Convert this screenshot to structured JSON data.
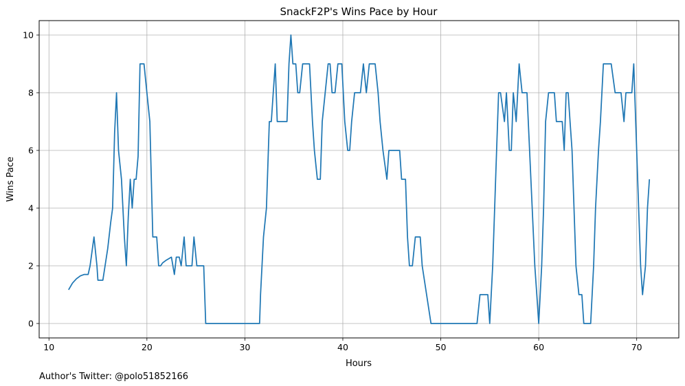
{
  "footnote": "Author's Twitter: @polo51852166",
  "chart_data": {
    "type": "line",
    "title": "SnackF2P's Wins Pace by Hour",
    "xlabel": "Hours",
    "ylabel": "Wins Pace",
    "xlim": [
      9,
      74.3
    ],
    "ylim": [
      -0.5,
      10.5
    ],
    "xticks": [
      10,
      20,
      30,
      40,
      50,
      60,
      70
    ],
    "yticks": [
      0,
      2,
      4,
      6,
      8,
      10
    ],
    "grid": true,
    "series": [
      {
        "color": "#1f77b4",
        "x": [
          12.0,
          12.4,
          12.8,
          13.2,
          13.6,
          14.0,
          14.2,
          14.6,
          14.9,
          15.0,
          15.5,
          16.0,
          16.3,
          16.5,
          16.7,
          16.9,
          17.1,
          17.4,
          17.7,
          17.9,
          18.1,
          18.3,
          18.5,
          18.7,
          18.9,
          19.1,
          19.3,
          19.5,
          19.7,
          20.0,
          20.3,
          20.6,
          21.0,
          21.2,
          21.4,
          21.6,
          22.0,
          22.5,
          22.8,
          23.0,
          23.3,
          23.5,
          23.8,
          24.0,
          24.3,
          24.6,
          24.8,
          25.1,
          25.4,
          25.8,
          26.0,
          26.4,
          27.0,
          28.0,
          29.0,
          30.0,
          31.0,
          31.5,
          31.6,
          31.9,
          32.2,
          32.5,
          32.7,
          32.9,
          33.1,
          33.3,
          33.5,
          33.9,
          34.3,
          34.5,
          34.7,
          34.9,
          35.2,
          35.4,
          35.6,
          35.9,
          36.1,
          36.6,
          36.9,
          37.1,
          37.4,
          37.7,
          37.9,
          38.2,
          38.5,
          38.7,
          38.9,
          39.2,
          39.5,
          39.9,
          40.2,
          40.5,
          40.7,
          40.9,
          41.2,
          41.5,
          41.8,
          42.1,
          42.4,
          42.7,
          42.9,
          43.3,
          43.6,
          43.8,
          44.1,
          44.5,
          44.7,
          45.1,
          45.4,
          45.8,
          46.0,
          46.2,
          46.4,
          46.6,
          46.8,
          47.1,
          47.4,
          47.6,
          47.9,
          48.1,
          49.0,
          50.0,
          51.0,
          52.0,
          53.0,
          53.5,
          53.7,
          54.0,
          54.4,
          54.6,
          54.8,
          55.0,
          55.3,
          55.7,
          55.9,
          56.1,
          56.5,
          56.7,
          57.0,
          57.2,
          57.4,
          57.7,
          58.0,
          58.3,
          58.6,
          58.8,
          59.2,
          59.6,
          59.8,
          60.0,
          60.3,
          60.5,
          60.7,
          61.0,
          61.3,
          61.6,
          61.8,
          62.1,
          62.4,
          62.6,
          62.8,
          63.0,
          63.2,
          63.4,
          63.8,
          64.1,
          64.4,
          64.6,
          64.8,
          65.0,
          65.3,
          65.6,
          65.8,
          66.1,
          66.3,
          66.6,
          66.9,
          67.1,
          67.4,
          67.8,
          68.1,
          68.4,
          68.7,
          68.9,
          69.2,
          69.5,
          69.7,
          70.1,
          70.4,
          70.6,
          70.9,
          71.1,
          71.3
        ],
        "y": [
          1.17,
          1.4,
          1.55,
          1.65,
          1.7,
          1.7,
          2.0,
          3.0,
          2.0,
          1.5,
          1.5,
          2.6,
          3.5,
          4.0,
          6.6,
          8.0,
          6.0,
          5.0,
          3.0,
          2.0,
          3.7,
          5.0,
          4.0,
          5.0,
          5.0,
          5.8,
          9.0,
          9.0,
          9.0,
          8.0,
          7.0,
          3.0,
          3.0,
          2.0,
          2.0,
          2.1,
          2.2,
          2.3,
          1.7,
          2.3,
          2.3,
          2.0,
          3.0,
          2.0,
          2.0,
          2.0,
          3.0,
          2.0,
          2.0,
          2.0,
          0.0,
          0.0,
          0.0,
          0.0,
          0.0,
          0.0,
          0.0,
          0.0,
          1.0,
          3.0,
          4.0,
          7.0,
          7.0,
          8.0,
          9.0,
          7.0,
          7.0,
          7.0,
          7.0,
          9.0,
          10.0,
          9.0,
          9.0,
          8.0,
          8.0,
          9.0,
          9.0,
          9.0,
          7.0,
          6.0,
          5.0,
          5.0,
          7.0,
          8.0,
          9.0,
          9.0,
          8.0,
          8.0,
          9.0,
          9.0,
          7.0,
          6.0,
          6.0,
          7.0,
          8.0,
          8.0,
          8.0,
          9.0,
          8.0,
          9.0,
          9.0,
          9.0,
          8.0,
          7.0,
          6.0,
          5.0,
          6.0,
          6.0,
          6.0,
          6.0,
          5.0,
          5.0,
          5.0,
          3.0,
          2.0,
          2.0,
          3.0,
          3.0,
          3.0,
          2.0,
          0.0,
          0.0,
          0.0,
          0.0,
          0.0,
          0.0,
          0.0,
          1.0,
          1.0,
          1.0,
          1.0,
          0.0,
          2.0,
          6.0,
          8.0,
          8.0,
          7.0,
          8.0,
          6.0,
          6.0,
          8.0,
          7.0,
          9.0,
          8.0,
          8.0,
          8.0,
          5.0,
          2.0,
          1.0,
          0.0,
          2.0,
          4.0,
          7.0,
          8.0,
          8.0,
          8.0,
          7.0,
          7.0,
          7.0,
          6.0,
          8.0,
          8.0,
          7.0,
          6.0,
          2.0,
          1.0,
          1.0,
          0.0,
          0.0,
          0.0,
          0.0,
          2.0,
          4.0,
          6.0,
          7.0,
          9.0,
          9.0,
          9.0,
          9.0,
          8.0,
          8.0,
          8.0,
          7.0,
          8.0,
          8.0,
          8.0,
          9.0,
          5.0,
          2.0,
          1.0,
          2.0,
          4.0,
          5.0
        ]
      }
    ]
  }
}
